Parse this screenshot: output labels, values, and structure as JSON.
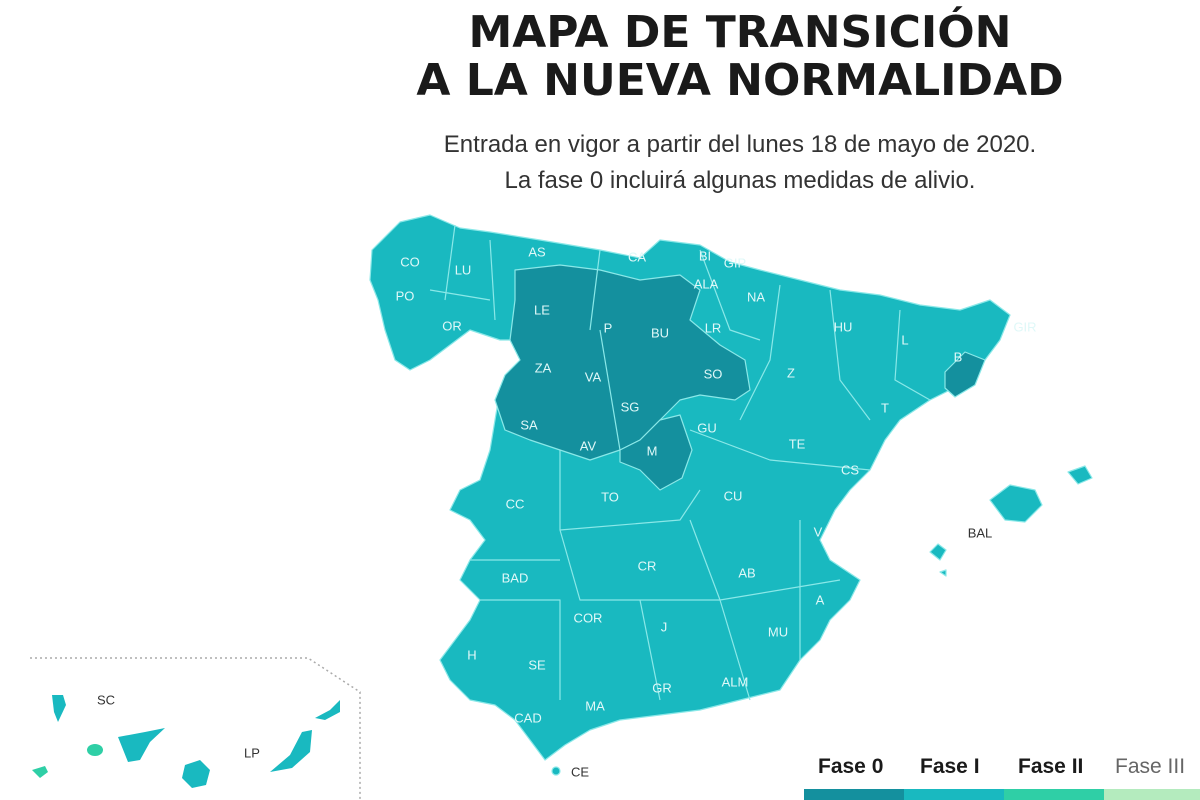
{
  "title": {
    "line1": "MAPA DE TRANSICIÓN",
    "line2": "A LA NUEVA NORMALIDAD"
  },
  "subtitle": {
    "line1": "Entrada en vigor a partir del lunes 18 de mayo de 2020.",
    "line2": "La fase 0 incluirá algunas medidas de alivio."
  },
  "colors": {
    "fase0": "#14909e",
    "fase1": "#19b9c0",
    "fase2": "#2fcfa6",
    "fase3": "#b4ebbe",
    "borders": "#7fe6e6"
  },
  "provinces": {
    "CO": "CO",
    "LU": "LU",
    "PO": "PO",
    "OR": "OR",
    "AS": "AS",
    "CA": "CA",
    "BI": "BI",
    "GIP": "GIP",
    "ALA": "ALA",
    "NA": "NA",
    "LE": "LE",
    "P": "P",
    "BU": "BU",
    "LR": "LR",
    "HU": "HU",
    "GIR": "GIR",
    "L": "L",
    "B": "B",
    "ZA": "ZA",
    "VA": "VA",
    "SO": "SO",
    "Z": "Z",
    "SG": "SG",
    "SA": "SA",
    "AV": "AV",
    "M": "M",
    "GU": "GU",
    "T": "T",
    "TE": "TE",
    "CS": "CS",
    "CC": "CC",
    "TO": "TO",
    "CU": "CU",
    "V": "V",
    "BAL": "BAL",
    "BAD": "BAD",
    "CR": "CR",
    "AB": "AB",
    "A": "A",
    "COR": "COR",
    "J": "J",
    "MU": "MU",
    "H": "H",
    "SE": "SE",
    "GR": "GR",
    "ALM": "ALM",
    "CAD": "CAD",
    "MA": "MA",
    "CE": "CE",
    "SC": "SC",
    "LP": "LP"
  },
  "legend": [
    "Fase 0",
    "Fase I",
    "Fase II",
    "Fase III"
  ]
}
